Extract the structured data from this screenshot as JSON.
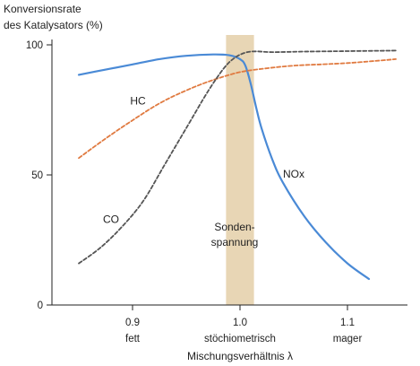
{
  "chart_data": {
    "type": "line",
    "ylabel_lines": [
      "Konversionsrate",
      "des Katalysators (%)"
    ],
    "xlabel": "Mischungsverhältnis λ",
    "xlim": [
      0.85,
      1.15
    ],
    "ylim": [
      0,
      100
    ],
    "x_ticks": [
      {
        "value": 0.9,
        "label": "0.9",
        "sublabel": "fett"
      },
      {
        "value": 1.0,
        "label": "1.0",
        "sublabel": "stöchiometrisch"
      },
      {
        "value": 1.1,
        "label": "1.1",
        "sublabel": "mager"
      }
    ],
    "y_ticks": [
      {
        "value": 0,
        "label": "0"
      },
      {
        "value": 50,
        "label": "50"
      },
      {
        "value": 100,
        "label": "100"
      }
    ],
    "band": {
      "x": [
        0.987,
        1.013
      ],
      "label_lines": [
        "Sonden-",
        "spannung"
      ],
      "color": "#e8d6b5"
    },
    "series": [
      {
        "name": "NOx",
        "color": "#4a8ad6",
        "dash": "solid",
        "x": [
          0.85,
          0.875,
          0.9,
          0.925,
          0.95,
          0.975,
          0.99,
          1.0,
          1.005,
          1.01,
          1.015,
          1.02,
          1.03,
          1.04,
          1.06,
          1.08,
          1.1,
          1.12
        ],
        "y": [
          88.5,
          90.5,
          92.5,
          94.5,
          95.8,
          96.3,
          96,
          94.5,
          92,
          85,
          76,
          68,
          56,
          47,
          34,
          24,
          16,
          10
        ]
      },
      {
        "name": "HC",
        "color": "#e07a40",
        "dash": "dashed",
        "x": [
          0.85,
          0.875,
          0.9,
          0.925,
          0.95,
          0.975,
          1.0,
          1.025,
          1.05,
          1.075,
          1.1,
          1.125,
          1.145
        ],
        "y": [
          56.5,
          64,
          71,
          77.5,
          82.5,
          86.5,
          89.5,
          91,
          92,
          92.5,
          93,
          93.8,
          94.5
        ]
      },
      {
        "name": "CO",
        "color": "#555555",
        "dash": "dashed",
        "x": [
          0.85,
          0.87,
          0.89,
          0.91,
          0.93,
          0.95,
          0.97,
          0.985,
          0.995,
          1.005,
          1.015,
          1.03,
          1.06,
          1.1,
          1.145
        ],
        "y": [
          16,
          22,
          30,
          40,
          54,
          68,
          82,
          91,
          95,
          97,
          97.5,
          97.2,
          97.4,
          97.6,
          97.8
        ]
      }
    ],
    "annotations": [
      {
        "text": "HC",
        "x": 0.905,
        "y": 77
      },
      {
        "text": "CO",
        "x": 0.88,
        "y": 31.5
      },
      {
        "text": "NOx",
        "x": 1.05,
        "y": 49
      }
    ]
  }
}
